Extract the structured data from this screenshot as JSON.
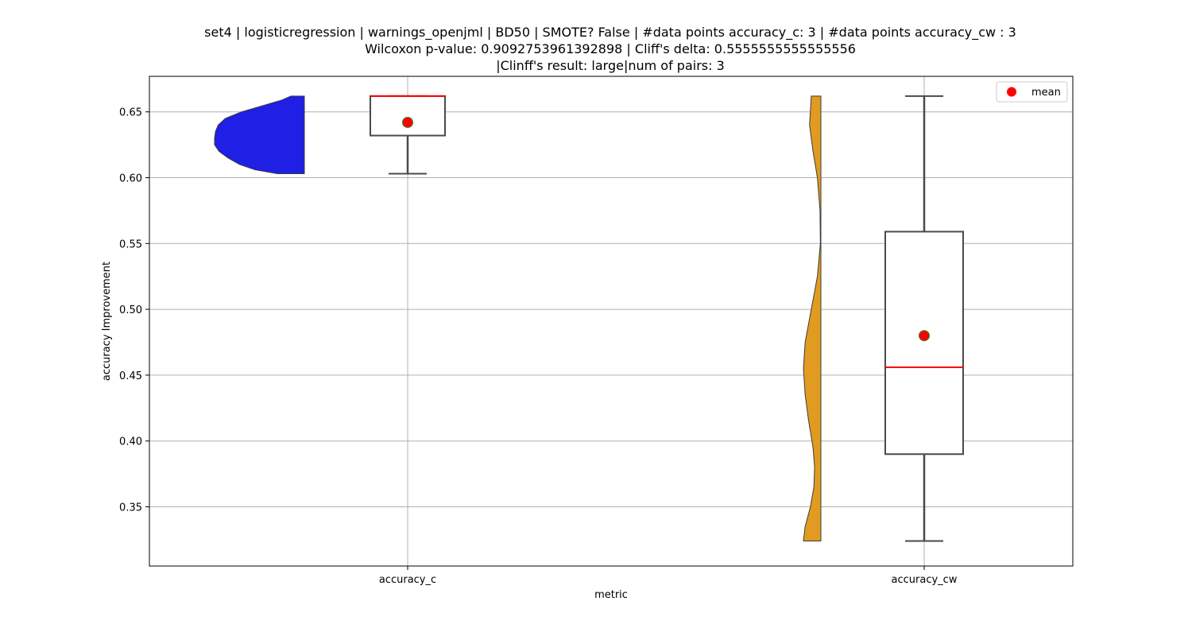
{
  "chart_data": {
    "type": "violin_box",
    "title_lines": [
      "set4 | logisticregression | warnings_openjml | BD50 | SMOTE? False | #data points accuracy_c: 3 | #data points accuracy_cw : 3",
      "Wilcoxon p-value: 0.9092753961392898 | Cliff's delta: 0.5555555555555556",
      "|Clinff's result: large|num of pairs: 3"
    ],
    "xlabel": "metric",
    "ylabel": "accuracy Improvement",
    "ylim": [
      0.305,
      0.677
    ],
    "yticks": [
      0.35,
      0.4,
      0.45,
      0.5,
      0.55,
      0.6,
      0.65
    ],
    "ytick_labels": [
      "0.35",
      "0.40",
      "0.45",
      "0.50",
      "0.55",
      "0.60",
      "0.65"
    ],
    "categories": [
      "accuracy_c",
      "accuracy_cw"
    ],
    "grid": true,
    "legend": {
      "position": "top-right",
      "entries": [
        {
          "label": "mean",
          "color": "#ff0000"
        }
      ]
    },
    "series": [
      {
        "category": "accuracy_c",
        "violin_color": "#1f1fe6",
        "box": {
          "min": 0.603,
          "q1": 0.632,
          "median": 0.662,
          "q3": 0.662,
          "max": 0.662
        },
        "mean": 0.642,
        "violin_profile": [
          [
            0.603,
            0.3
          ],
          [
            0.606,
            0.55
          ],
          [
            0.61,
            0.72
          ],
          [
            0.615,
            0.85
          ],
          [
            0.62,
            0.95
          ],
          [
            0.625,
            1.0
          ],
          [
            0.63,
            1.0
          ],
          [
            0.635,
            0.99
          ],
          [
            0.64,
            0.96
          ],
          [
            0.645,
            0.88
          ],
          [
            0.65,
            0.7
          ],
          [
            0.655,
            0.45
          ],
          [
            0.659,
            0.25
          ],
          [
            0.662,
            0.15
          ]
        ]
      },
      {
        "category": "accuracy_cw",
        "violin_color": "#e09b20",
        "box": {
          "min": 0.324,
          "q1": 0.39,
          "median": 0.456,
          "q3": 0.559,
          "max": 0.662
        },
        "mean": 0.48,
        "violin_profile": [
          [
            0.324,
            1.0
          ],
          [
            0.335,
            0.9
          ],
          [
            0.35,
            0.6
          ],
          [
            0.365,
            0.4
          ],
          [
            0.38,
            0.36
          ],
          [
            0.395,
            0.45
          ],
          [
            0.415,
            0.7
          ],
          [
            0.435,
            0.9
          ],
          [
            0.455,
            1.0
          ],
          [
            0.475,
            0.9
          ],
          [
            0.5,
            0.55
          ],
          [
            0.525,
            0.2
          ],
          [
            0.55,
            0.03
          ],
          [
            0.575,
            0.05
          ],
          [
            0.6,
            0.2
          ],
          [
            0.62,
            0.45
          ],
          [
            0.64,
            0.65
          ],
          [
            0.662,
            0.55
          ]
        ]
      }
    ]
  }
}
